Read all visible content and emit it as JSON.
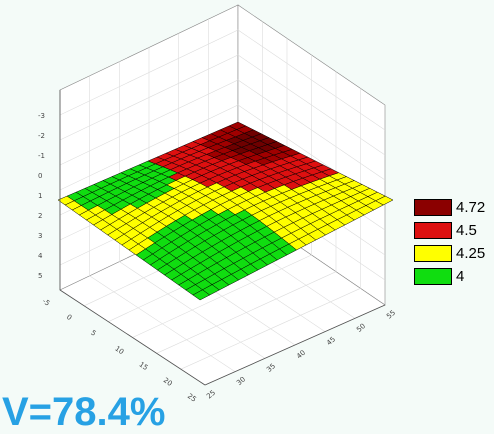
{
  "chart_data": {
    "type": "surface",
    "grid": true,
    "legend_position": "right",
    "legend": [
      {
        "label": "4.72",
        "color": "#8b0000"
      },
      {
        "label": "4.5",
        "color": "#dd1010"
      },
      {
        "label": "4.25",
        "color": "#ffff00"
      },
      {
        "label": "4",
        "color": "#10dd10"
      }
    ],
    "x_ticks": [
      "25",
      "30",
      "35",
      "40",
      "45",
      "50",
      "55"
    ],
    "y_ticks": [
      "25",
      "20",
      "15",
      "10",
      "5",
      "0",
      "-5"
    ],
    "z_ticks": [
      "5",
      "4",
      "3",
      "2",
      "1",
      "0",
      "-1",
      "-2",
      "-3"
    ],
    "surface_levels": {
      "low_left_blob": "4",
      "low_front_blob": "4",
      "high_right_blob": "4.72",
      "mid_surface": "4.25"
    }
  },
  "overlay_text": "V=78.4%"
}
